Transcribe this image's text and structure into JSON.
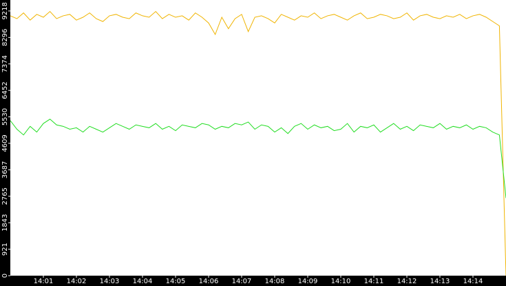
{
  "chart_data": {
    "type": "line",
    "x": [
      0,
      0.2,
      0.4,
      0.6,
      0.8,
      1,
      1.2,
      1.4,
      1.6,
      1.8,
      2,
      2.2,
      2.4,
      2.6,
      2.8,
      3,
      3.2,
      3.4,
      3.6,
      3.8,
      4,
      4.2,
      4.4,
      4.6,
      4.8,
      5,
      5.2,
      5.4,
      5.6,
      5.8,
      6,
      6.2,
      6.4,
      6.6,
      6.8,
      7,
      7.2,
      7.4,
      7.6,
      7.8,
      8,
      8.2,
      8.4,
      8.6,
      8.8,
      9,
      9.2,
      9.4,
      9.6,
      9.8,
      10,
      10.2,
      10.4,
      10.6,
      10.8,
      11,
      11.2,
      11.4,
      11.6,
      11.8,
      12,
      12.2,
      12.4,
      12.6,
      12.8,
      13,
      13.2,
      13.4,
      13.6,
      13.8,
      14,
      14.2,
      14.4,
      14.6,
      14.8,
      15
    ],
    "series": [
      {
        "color": "#f0b400",
        "values": [
          9050,
          8950,
          9150,
          8900,
          9100,
          9000,
          9200,
          8950,
          9050,
          9100,
          8900,
          9000,
          9150,
          8950,
          8850,
          9050,
          9100,
          9000,
          8950,
          9150,
          9050,
          9000,
          9200,
          8950,
          9100,
          9000,
          9050,
          8900,
          9150,
          9000,
          8800,
          8400,
          9000,
          8600,
          8950,
          9100,
          8500,
          9000,
          9050,
          8950,
          8800,
          9100,
          9000,
          8900,
          9050,
          9000,
          9150,
          8950,
          9050,
          9100,
          9000,
          8900,
          9050,
          9150,
          8950,
          9000,
          9100,
          9050,
          8950,
          9000,
          9150,
          8900,
          9050,
          9100,
          9000,
          8950,
          9050,
          9000,
          9100,
          8950,
          9050,
          9100,
          9000,
          8850,
          8700,
          0
        ]
      },
      {
        "color": "#22dd22",
        "values": [
          5400,
          5100,
          4900,
          5200,
          5000,
          5300,
          5450,
          5250,
          5200,
          5100,
          5150,
          5000,
          5200,
          5100,
          5000,
          5150,
          5300,
          5200,
          5100,
          5250,
          5200,
          5150,
          5300,
          5100,
          5200,
          5050,
          5250,
          5200,
          5150,
          5300,
          5250,
          5100,
          5200,
          5150,
          5300,
          5250,
          5350,
          5100,
          5250,
          5200,
          5000,
          5150,
          4950,
          5200,
          5300,
          5100,
          5250,
          5150,
          5200,
          5050,
          5100,
          5300,
          5000,
          5200,
          5150,
          5250,
          5000,
          5150,
          5300,
          5100,
          5200,
          5050,
          5250,
          5200,
          5150,
          5300,
          5100,
          5200,
          5150,
          5250,
          5100,
          5200,
          5150,
          5000,
          4900,
          2700
        ]
      }
    ],
    "xlim": [
      0,
      15
    ],
    "xticks": [
      {
        "value": 1,
        "label": "14:01"
      },
      {
        "value": 2,
        "label": "14:02"
      },
      {
        "value": 3,
        "label": "14:03"
      },
      {
        "value": 4,
        "label": "14:04"
      },
      {
        "value": 5,
        "label": "14:05"
      },
      {
        "value": 6,
        "label": "14:06"
      },
      {
        "value": 7,
        "label": "14:07"
      },
      {
        "value": 8,
        "label": "14:08"
      },
      {
        "value": 9,
        "label": "14:09"
      },
      {
        "value": 10,
        "label": "14:10"
      },
      {
        "value": 11,
        "label": "14:11"
      },
      {
        "value": 12,
        "label": "14:12"
      },
      {
        "value": 13,
        "label": "14:13"
      },
      {
        "value": 14,
        "label": "14:14"
      }
    ],
    "ylim": [
      0,
      9600
    ],
    "yticks": [
      0,
      921,
      1843,
      2765,
      3687,
      4609,
      5530,
      6452,
      7374,
      8296,
      9218
    ]
  }
}
